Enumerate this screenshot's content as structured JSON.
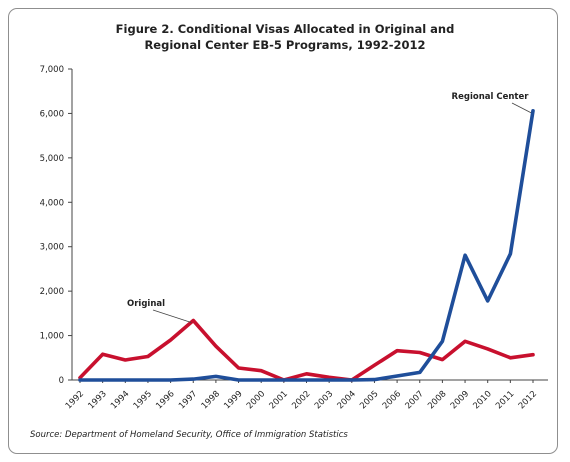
{
  "title_line1": "Figure 2. Conditional Visas Allocated in Original and",
  "title_line2": "Regional Center EB-5 Programs, 1992-2012",
  "source": "Source: Department of Homeland Security, Office of Immigration Statistics",
  "chart_data": {
    "type": "line",
    "title": "Figure 2. Conditional Visas Allocated in Original and Regional Center EB-5 Programs, 1992-2012",
    "xlabel": "",
    "ylabel": "",
    "categories": [
      "1992",
      "1993",
      "1994",
      "1995",
      "1996",
      "1997",
      "1998",
      "1999",
      "2000",
      "2001",
      "2002",
      "2003",
      "2004",
      "2005",
      "2006",
      "2007",
      "2008",
      "2009",
      "2010",
      "2011",
      "2012"
    ],
    "ylim": [
      0,
      7000
    ],
    "yticks": [
      0,
      1000,
      2000,
      3000,
      4000,
      5000,
      6000,
      7000
    ],
    "ytick_labels": [
      "0",
      "1,000",
      "2,000",
      "3,000",
      "4,000",
      "5,000",
      "6,000",
      "7,000"
    ],
    "grid": false,
    "series": [
      {
        "name": "Original",
        "color": "#c8102e",
        "values": [
          50,
          580,
          450,
          530,
          900,
          1340,
          760,
          270,
          210,
          0,
          140,
          60,
          0,
          330,
          660,
          620,
          460,
          870,
          700,
          500,
          570
        ]
      },
      {
        "name": "Regional Center",
        "color": "#1f4e9a",
        "values": [
          0,
          0,
          0,
          0,
          0,
          20,
          80,
          0,
          0,
          0,
          0,
          0,
          0,
          10,
          90,
          170,
          870,
          2810,
          1780,
          2840,
          6060
        ]
      }
    ],
    "annotations": [
      {
        "text": "Original",
        "series": "Original",
        "x": "1997"
      },
      {
        "text": "Regional Center",
        "series": "Regional Center",
        "x": "2012"
      }
    ]
  }
}
